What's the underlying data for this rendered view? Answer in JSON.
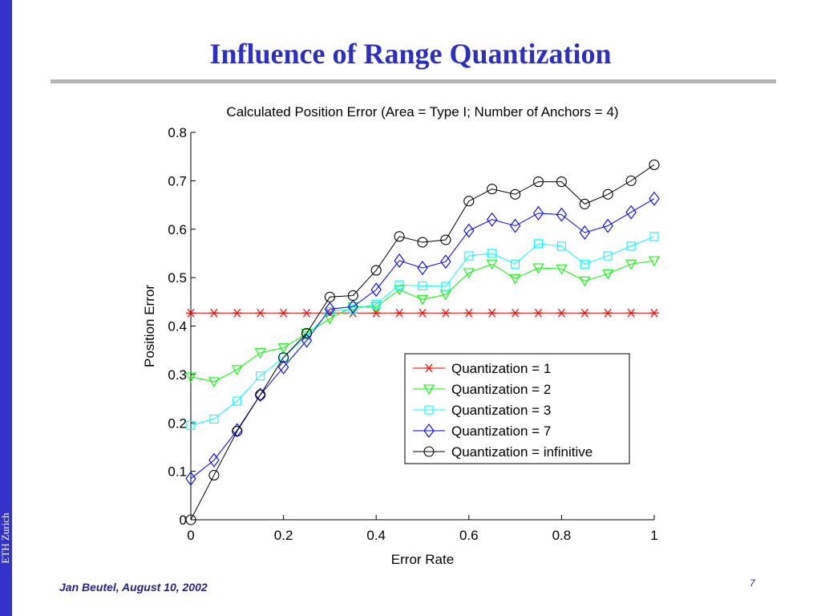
{
  "slide": {
    "title": "Influence of Range Quantization",
    "side_label": "ETH Zurich",
    "footer": "Jan Beutel, August 10, 2002",
    "page_number": "7"
  },
  "chart_data": {
    "type": "line",
    "title": "Calculated Position Error (Area = Type I; Number of Anchors = 4)",
    "xlabel": "Error Rate",
    "ylabel": "Position Error",
    "xlim": [
      0,
      1
    ],
    "ylim": [
      0,
      0.8
    ],
    "x_ticks": [
      "0",
      "0.2",
      "0.4",
      "0.6",
      "0.8",
      "1"
    ],
    "y_ticks": [
      "0",
      "0.1",
      "0.2",
      "0.3",
      "0.4",
      "0.5",
      "0.6",
      "0.7",
      "0.8"
    ],
    "grid": false,
    "legend_position": "lower-right",
    "x": [
      0,
      0.05,
      0.1,
      0.15,
      0.2,
      0.25,
      0.3,
      0.35,
      0.4,
      0.45,
      0.5,
      0.55,
      0.6,
      0.65,
      0.7,
      0.75,
      0.8,
      0.85,
      0.9,
      0.95,
      1.0
    ],
    "series": [
      {
        "name": "Quantization = 1",
        "color": "#ff0000",
        "marker": "asterisk",
        "values": [
          0.427,
          0.427,
          0.427,
          0.427,
          0.427,
          0.427,
          0.427,
          0.427,
          0.427,
          0.427,
          0.427,
          0.427,
          0.427,
          0.427,
          0.427,
          0.427,
          0.427,
          0.427,
          0.427,
          0.427,
          0.427
        ]
      },
      {
        "name": "Quantization = 2",
        "color": "#00ff00",
        "marker": "triangle-down",
        "values": [
          0.295,
          0.285,
          0.31,
          0.345,
          0.355,
          0.385,
          0.415,
          0.44,
          0.44,
          0.475,
          0.455,
          0.465,
          0.51,
          0.528,
          0.498,
          0.52,
          0.518,
          0.493,
          0.508,
          0.528,
          0.535
        ]
      },
      {
        "name": "Quantization = 3",
        "color": "#00ffff",
        "marker": "square",
        "values": [
          0.195,
          0.208,
          0.245,
          0.297,
          0.335,
          0.38,
          0.43,
          0.435,
          0.445,
          0.485,
          0.483,
          0.482,
          0.545,
          0.55,
          0.528,
          0.57,
          0.565,
          0.528,
          0.545,
          0.565,
          0.585
        ]
      },
      {
        "name": "Quantization = 7",
        "color": "#0000ff",
        "marker": "diamond",
        "values": [
          0.085,
          0.123,
          0.185,
          0.258,
          0.315,
          0.37,
          0.435,
          0.44,
          0.475,
          0.535,
          0.52,
          0.533,
          0.597,
          0.62,
          0.607,
          0.633,
          0.63,
          0.593,
          0.607,
          0.635,
          0.663
        ]
      },
      {
        "name": "Quantization = infinitive",
        "color": "#000000",
        "marker": "circle",
        "values": [
          0.0,
          0.092,
          0.183,
          0.258,
          0.335,
          0.385,
          0.46,
          0.463,
          0.515,
          0.585,
          0.573,
          0.578,
          0.658,
          0.683,
          0.672,
          0.698,
          0.698,
          0.652,
          0.672,
          0.7,
          0.733
        ]
      }
    ]
  }
}
